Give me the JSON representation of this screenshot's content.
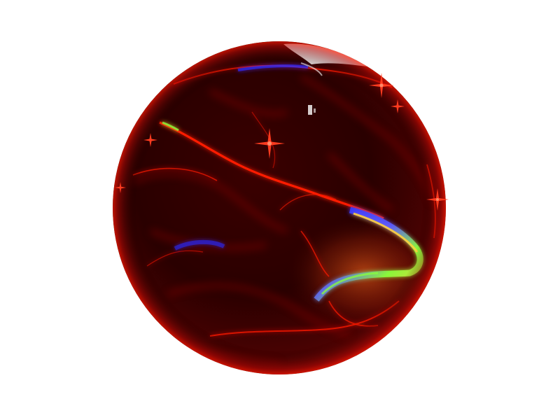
{
  "scene": {
    "subject": "sphere",
    "background_color": "#ffffff",
    "base_color": "#2a0000",
    "caustic_color": "#ff1a00",
    "highlight_colors": [
      "#2b2bff",
      "#8aff3c",
      "#ffd23c"
    ],
    "sparkle_color": "#ff3b1f"
  }
}
